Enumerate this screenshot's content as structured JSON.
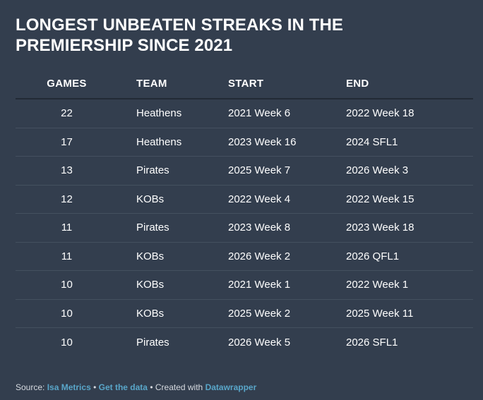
{
  "title": "LONGEST UNBEATEN STREAKS IN THE PREMIERSHIP SINCE 2021",
  "table": {
    "headers": {
      "games": "GAMES",
      "team": "TEAM",
      "start": "START",
      "end": "END"
    },
    "rows": [
      {
        "games": "22",
        "team": "Heathens",
        "start": "2021 Week 6",
        "end": "2022 Week 18"
      },
      {
        "games": "17",
        "team": "Heathens",
        "start": "2023 Week 16",
        "end": "2024 SFL1"
      },
      {
        "games": "13",
        "team": "Pirates",
        "start": "2025 Week 7",
        "end": "2026 Week 3"
      },
      {
        "games": "12",
        "team": "KOBs",
        "start": "2022 Week 4",
        "end": "2022 Week 15"
      },
      {
        "games": "11",
        "team": "Pirates",
        "start": "2023 Week 8",
        "end": "2023 Week 18"
      },
      {
        "games": "11",
        "team": "KOBs",
        "start": "2026 Week 2",
        "end": "2026 QFL1"
      },
      {
        "games": "10",
        "team": "KOBs",
        "start": "2021 Week 1",
        "end": "2022 Week 1"
      },
      {
        "games": "10",
        "team": "KOBs",
        "start": "2025 Week 2",
        "end": "2025 Week 11"
      },
      {
        "games": "10",
        "team": "Pirates",
        "start": "2026 Week 5",
        "end": "2026 SFL1"
      }
    ]
  },
  "footer": {
    "source_label": "Source: ",
    "source_link": "Isa Metrics",
    "separator": " • ",
    "data_link": "Get the data",
    "created_label": "Created with ",
    "created_link": "Datawrapper"
  },
  "colors": {
    "background": "#333e4e",
    "link": "#59a6c9",
    "text": "#ffffff"
  }
}
